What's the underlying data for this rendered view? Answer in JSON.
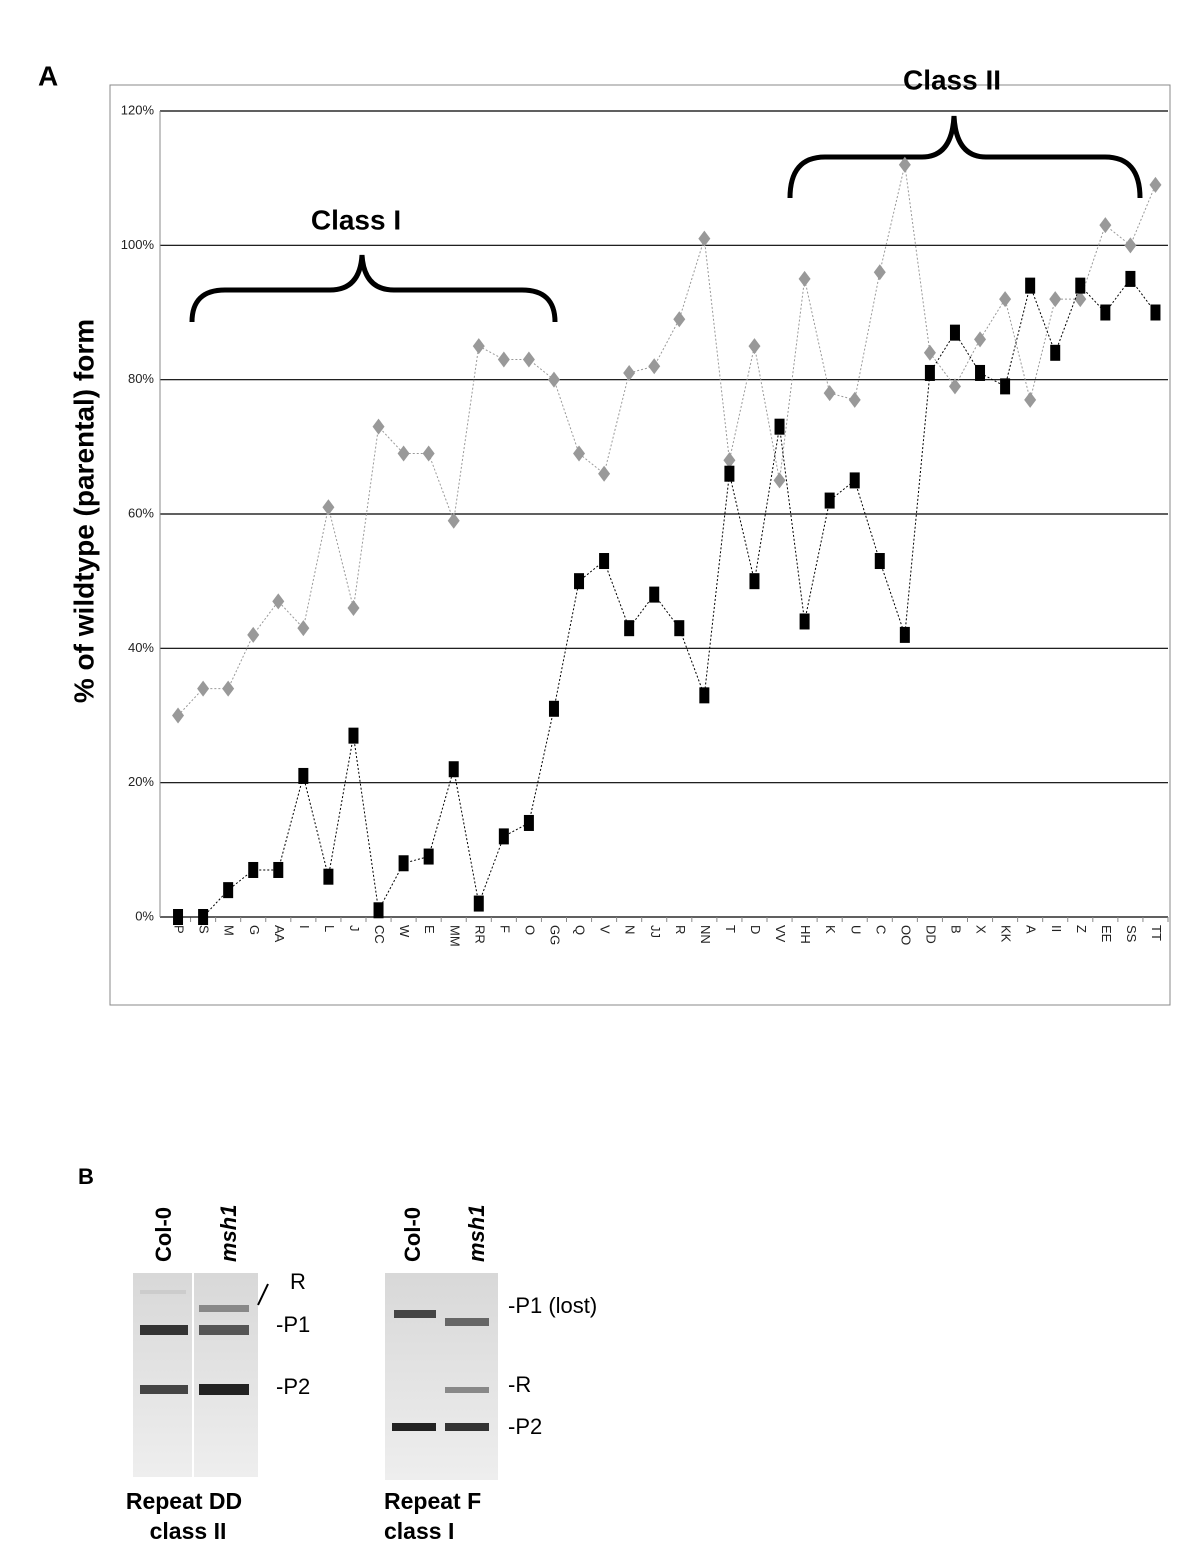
{
  "panel_label_a": "A",
  "chart_data": {
    "type": "line",
    "ylabel": "% of wildtype  (parental) form",
    "annotations": [
      "Class I",
      "Class II"
    ],
    "categories": [
      "P",
      "S",
      "M",
      "G",
      "AA",
      "I",
      "L",
      "J",
      "CC",
      "W",
      "E",
      "MM",
      "RR",
      "F",
      "O",
      "GG",
      "Q",
      "V",
      "N",
      "JJ",
      "R",
      "NN",
      "T",
      "D",
      "VV",
      "HH",
      "K",
      "U",
      "C",
      "OO",
      "DD",
      "B",
      "X",
      "KK",
      "A",
      "II",
      "Z",
      "EE",
      "SS",
      "TT"
    ],
    "series": [
      {
        "color": "#999999",
        "marker": "diamond",
        "values": [
          30,
          34,
          34,
          42,
          47,
          43,
          61,
          46,
          73,
          69,
          69,
          59,
          85,
          83,
          83,
          80,
          69,
          66,
          81,
          82,
          89,
          101,
          68,
          85,
          65,
          95,
          78,
          77,
          96,
          112,
          84,
          79,
          86,
          92,
          77,
          92,
          92,
          103,
          100,
          109
        ]
      },
      {
        "color": "#000000",
        "marker": "square",
        "values": [
          0,
          0,
          4,
          7,
          7,
          21,
          6,
          27,
          1,
          8,
          9,
          22,
          2,
          12,
          14,
          31,
          50,
          53,
          43,
          48,
          43,
          33,
          66,
          50,
          73,
          44,
          62,
          65,
          53,
          42,
          81,
          87,
          81,
          79,
          94,
          84,
          94,
          90,
          95,
          90
        ]
      }
    ],
    "ylim": [
      0,
      120
    ],
    "yticks": [
      {
        "value": 0,
        "label": "0%"
      },
      {
        "value": 20,
        "label": "20%"
      },
      {
        "value": 40,
        "label": "40%"
      },
      {
        "value": 60,
        "label": "60%"
      },
      {
        "value": 80,
        "label": "80%"
      },
      {
        "value": 100,
        "label": "100%"
      },
      {
        "value": 120,
        "label": "120%"
      }
    ],
    "grid": true
  },
  "panel_b": {
    "label": "B",
    "gels": [
      {
        "lanes": [
          "Col-0",
          "msh1"
        ],
        "bands": [
          "R",
          "-P1",
          "-P2"
        ],
        "caption": [
          "Repeat DD",
          "class II"
        ]
      },
      {
        "lanes": [
          "Col-0",
          "msh1"
        ],
        "bands": [
          "-P1 (lost)",
          "-R",
          "-P2"
        ],
        "caption": [
          "Repeat F",
          "class I"
        ]
      }
    ]
  }
}
